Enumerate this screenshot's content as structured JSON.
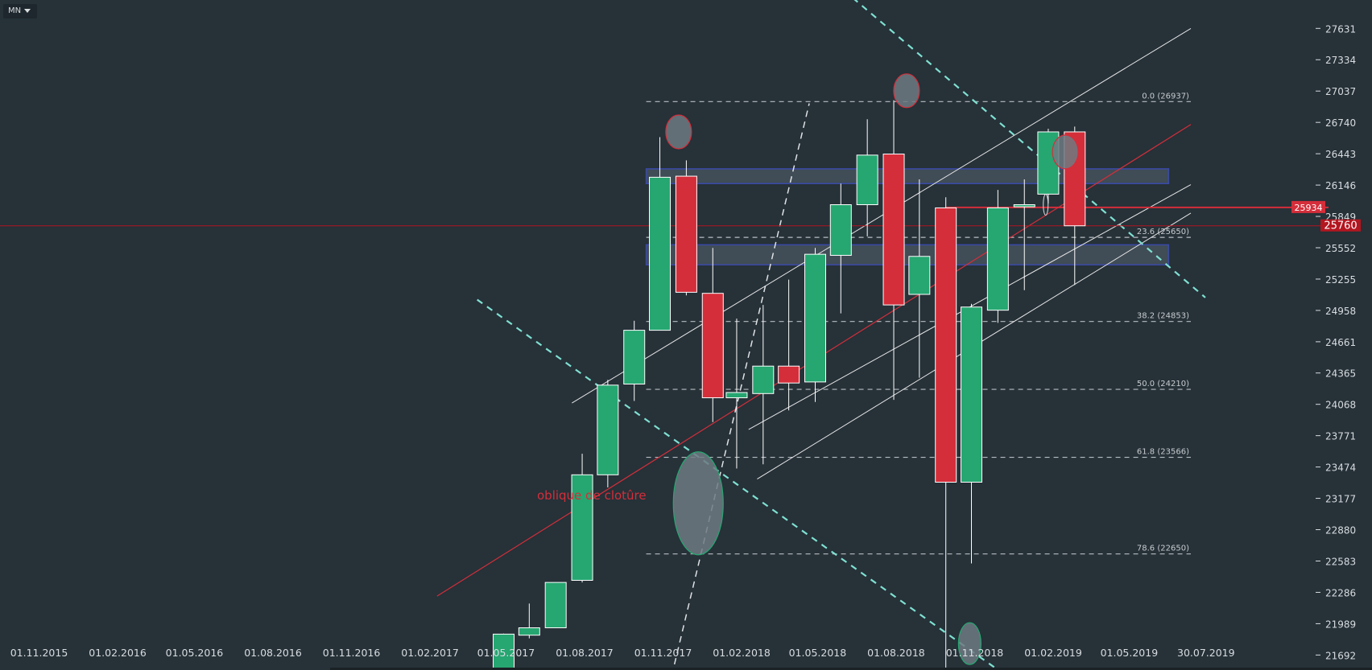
{
  "toolbar": {
    "timeframe": "MN"
  },
  "colors": {
    "background": "#263138",
    "bull": "#26a671",
    "bear": "#d42e3a",
    "text": "#d8dde0",
    "grid": "#3a464d",
    "zone_fill": "#4a5560",
    "zone_border": "#3a4aa8",
    "dashed_channel": "#7fe0d2",
    "trendline": "#e6e6e6",
    "closing_line": "#d42e3a",
    "price_line": "#b41620",
    "ellipse": "#6f7a82"
  },
  "chart_data": {
    "type": "candlestick",
    "timeframe": "MN",
    "y_range": [
      21550,
      27900
    ],
    "x_range": [
      "2015-10-20",
      "2019-09-01"
    ],
    "y_ticks": [
      27631,
      27334,
      27037,
      26740,
      26443,
      26146,
      25849,
      25552,
      25255,
      24958,
      24661,
      24365,
      24068,
      23771,
      23474,
      23177,
      22880,
      22583,
      22286,
      21989,
      21692
    ],
    "x_ticks": [
      {
        "date": "2015-11-01",
        "label": "01.11.2015"
      },
      {
        "date": "2016-02-01",
        "label": "01.02.2016"
      },
      {
        "date": "2016-05-01",
        "label": "01.05.2016"
      },
      {
        "date": "2016-08-01",
        "label": "01.08.2016"
      },
      {
        "date": "2016-11-01",
        "label": "01.11.2016"
      },
      {
        "date": "2017-02-01",
        "label": "01.02.2017"
      },
      {
        "date": "2017-05-01",
        "label": "01.05.2017"
      },
      {
        "date": "2017-08-01",
        "label": "01.08.2017"
      },
      {
        "date": "2017-11-01",
        "label": "01.11.2017"
      },
      {
        "date": "2018-02-01",
        "label": "01.02.2018"
      },
      {
        "date": "2018-05-01",
        "label": "01.05.2018"
      },
      {
        "date": "2018-08-01",
        "label": "01.08.2018"
      },
      {
        "date": "2018-11-01",
        "label": "01.11.2018"
      },
      {
        "date": "2019-02-01",
        "label": "01.02.2019"
      },
      {
        "date": "2019-05-01",
        "label": "01.05.2019"
      },
      {
        "date": "2019-07-30",
        "label": "30.07.2019"
      }
    ],
    "candles": [
      {
        "date": "2017-06-01",
        "open": 21400,
        "high": 21895,
        "low": 21400,
        "close": 21890
      },
      {
        "date": "2017-07-01",
        "open": 21880,
        "high": 22180,
        "low": 21850,
        "close": 21950
      },
      {
        "date": "2017-08-01",
        "open": 21950,
        "high": 22380,
        "low": 21950,
        "close": 22380
      },
      {
        "date": "2017-09-01",
        "open": 22400,
        "high": 23600,
        "low": 22380,
        "close": 23400
      },
      {
        "date": "2017-10-01",
        "open": 23400,
        "high": 24300,
        "low": 23280,
        "close": 24250
      },
      {
        "date": "2017-11-01",
        "open": 24260,
        "high": 24860,
        "low": 24100,
        "close": 24770
      },
      {
        "date": "2017-12-01",
        "open": 24770,
        "high": 26600,
        "low": 24770,
        "close": 26220
      },
      {
        "date": "2018-01-01",
        "open": 26230,
        "high": 26380,
        "low": 25100,
        "close": 25130
      },
      {
        "date": "2018-02-01",
        "open": 25120,
        "high": 25550,
        "low": 23900,
        "close": 24130
      },
      {
        "date": "2018-03-01",
        "open": 24130,
        "high": 24880,
        "low": 23460,
        "close": 24180
      },
      {
        "date": "2018-04-01",
        "open": 24170,
        "high": 25010,
        "low": 23500,
        "close": 24430
      },
      {
        "date": "2018-05-01",
        "open": 24430,
        "high": 25250,
        "low": 24010,
        "close": 24270
      },
      {
        "date": "2018-06-01",
        "open": 24280,
        "high": 25550,
        "low": 24090,
        "close": 25490
      },
      {
        "date": "2018-07-01",
        "open": 25480,
        "high": 26160,
        "low": 24930,
        "close": 25960
      },
      {
        "date": "2018-08-01",
        "open": 25960,
        "high": 26770,
        "low": 25660,
        "close": 26430
      },
      {
        "date": "2018-09-01",
        "open": 26440,
        "high": 26950,
        "low": 24110,
        "close": 25010
      },
      {
        "date": "2018-10-01",
        "open": 25110,
        "high": 26200,
        "low": 24320,
        "close": 25470
      },
      {
        "date": "2018-11-01",
        "open": 25930,
        "high": 26030,
        "low": 21500,
        "close": 23330
      },
      {
        "date": "2018-12-01",
        "open": 23330,
        "high": 25020,
        "low": 22560,
        "close": 24990
      },
      {
        "date": "2019-01-01",
        "open": 24960,
        "high": 26100,
        "low": 24840,
        "close": 25930
      },
      {
        "date": "2019-02-01",
        "open": 25940,
        "high": 26200,
        "low": 25150,
        "close": 25960
      },
      {
        "date": "2019-03-01",
        "open": 26060,
        "high": 26680,
        "low": 25970,
        "close": 26650
      },
      {
        "date": "2019-04-01",
        "open": 26650,
        "high": 26700,
        "low": 25200,
        "close": 25760
      }
    ],
    "price_labels": [
      {
        "value": 25934,
        "label": "25934"
      },
      {
        "value": 25760,
        "label": "25760"
      }
    ],
    "fibonacci": [
      {
        "value": 26937,
        "label": "0.0 (26937)"
      },
      {
        "value": 25650,
        "label": "23.6 (25650)"
      },
      {
        "value": 24853,
        "label": "38.2 (24853)"
      },
      {
        "value": 24210,
        "label": "50.0 (24210)"
      },
      {
        "value": 23566,
        "label": "61.8 (23566)"
      },
      {
        "value": 22650,
        "label": "78.6 (22650)"
      }
    ],
    "zones": [
      {
        "from": "2017-11-15",
        "to": "2019-07-20",
        "top": 26300,
        "bottom": 26160
      },
      {
        "from": "2017-11-15",
        "to": "2019-07-20",
        "top": 25580,
        "bottom": 25390
      }
    ],
    "annotations": [
      {
        "text": "oblique de clotûre"
      }
    ],
    "lines": {
      "closing_oblique": [
        [
          "2017-03-15",
          22250
        ],
        [
          "2019-08-15",
          26720
        ]
      ],
      "channel_upper": [
        [
          "2017-08-20",
          24080
        ],
        [
          "2019-08-15",
          27630
        ]
      ],
      "channel_mid": [
        [
          "2018-03-15",
          23830
        ],
        [
          "2019-08-15",
          26150
        ]
      ],
      "channel_lower": [
        [
          "2018-03-25",
          23360
        ],
        [
          "2019-08-15",
          25880
        ]
      ],
      "dashed_desc_upper": [
        [
          "2018-07-15",
          27920
        ],
        [
          "2019-09-01",
          25080
        ]
      ],
      "dashed_desc_lower": [
        [
          "2017-05-01",
          25060
        ],
        [
          "2019-01-10",
          21500
        ]
      ],
      "dashed_steep": [
        [
          "2017-12-15",
          21500
        ],
        [
          "2018-05-25",
          26920
        ]
      ],
      "price_line": {
        "value": 25934,
        "from": "2018-11-01"
      }
    },
    "markers": [
      {
        "date": "2017-12-23",
        "value": 26650,
        "rx": 16,
        "ry": 21
      },
      {
        "date": "2018-09-16",
        "value": 27040,
        "rx": 16,
        "ry": 21
      },
      {
        "date": "2019-03-21",
        "value": 26460,
        "rx": 16,
        "ry": 21
      },
      {
        "date": "2018-01-15",
        "value": 23130,
        "rx": 31,
        "ry": 64
      },
      {
        "date": "2018-11-29",
        "value": 21800,
        "rx": 14,
        "ry": 26
      }
    ]
  }
}
